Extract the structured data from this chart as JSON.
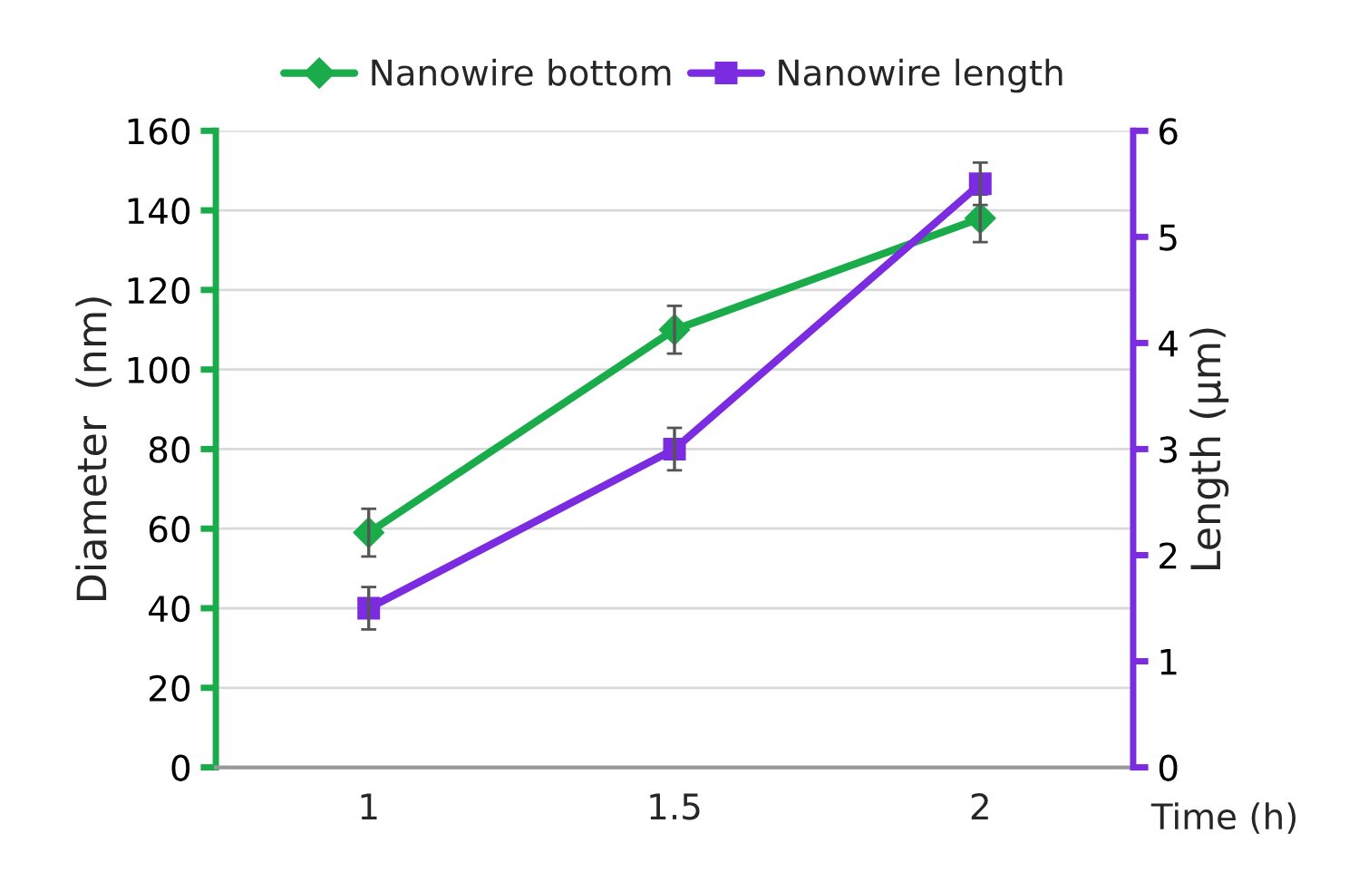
{
  "chart_data": {
    "type": "line",
    "categories": [
      "1",
      "1.5",
      "2"
    ],
    "xlabel": "Time (h)",
    "ylabel": "Diameter  (nm)",
    "y2label": "Length (µm)",
    "ylim": [
      0,
      160
    ],
    "yticks": [
      0,
      20,
      40,
      60,
      80,
      100,
      120,
      140,
      160
    ],
    "y2lim": [
      0,
      6
    ],
    "y2ticks": [
      0,
      1,
      2,
      3,
      4,
      5,
      6
    ],
    "grid": "y",
    "legend": "top",
    "series": [
      {
        "name": "Nanowire bottom",
        "color": "#1aab4b",
        "marker": "diamond",
        "values": [
          59,
          110,
          138
        ],
        "errors": [
          6,
          6,
          6
        ]
      },
      {
        "name": "Nanowire length",
        "color": "#7b2be0",
        "marker": "square",
        "axis": "y2",
        "values": [
          1.5,
          3.0,
          5.5
        ],
        "errors": [
          0.2,
          0.2,
          0.2
        ]
      }
    ]
  }
}
